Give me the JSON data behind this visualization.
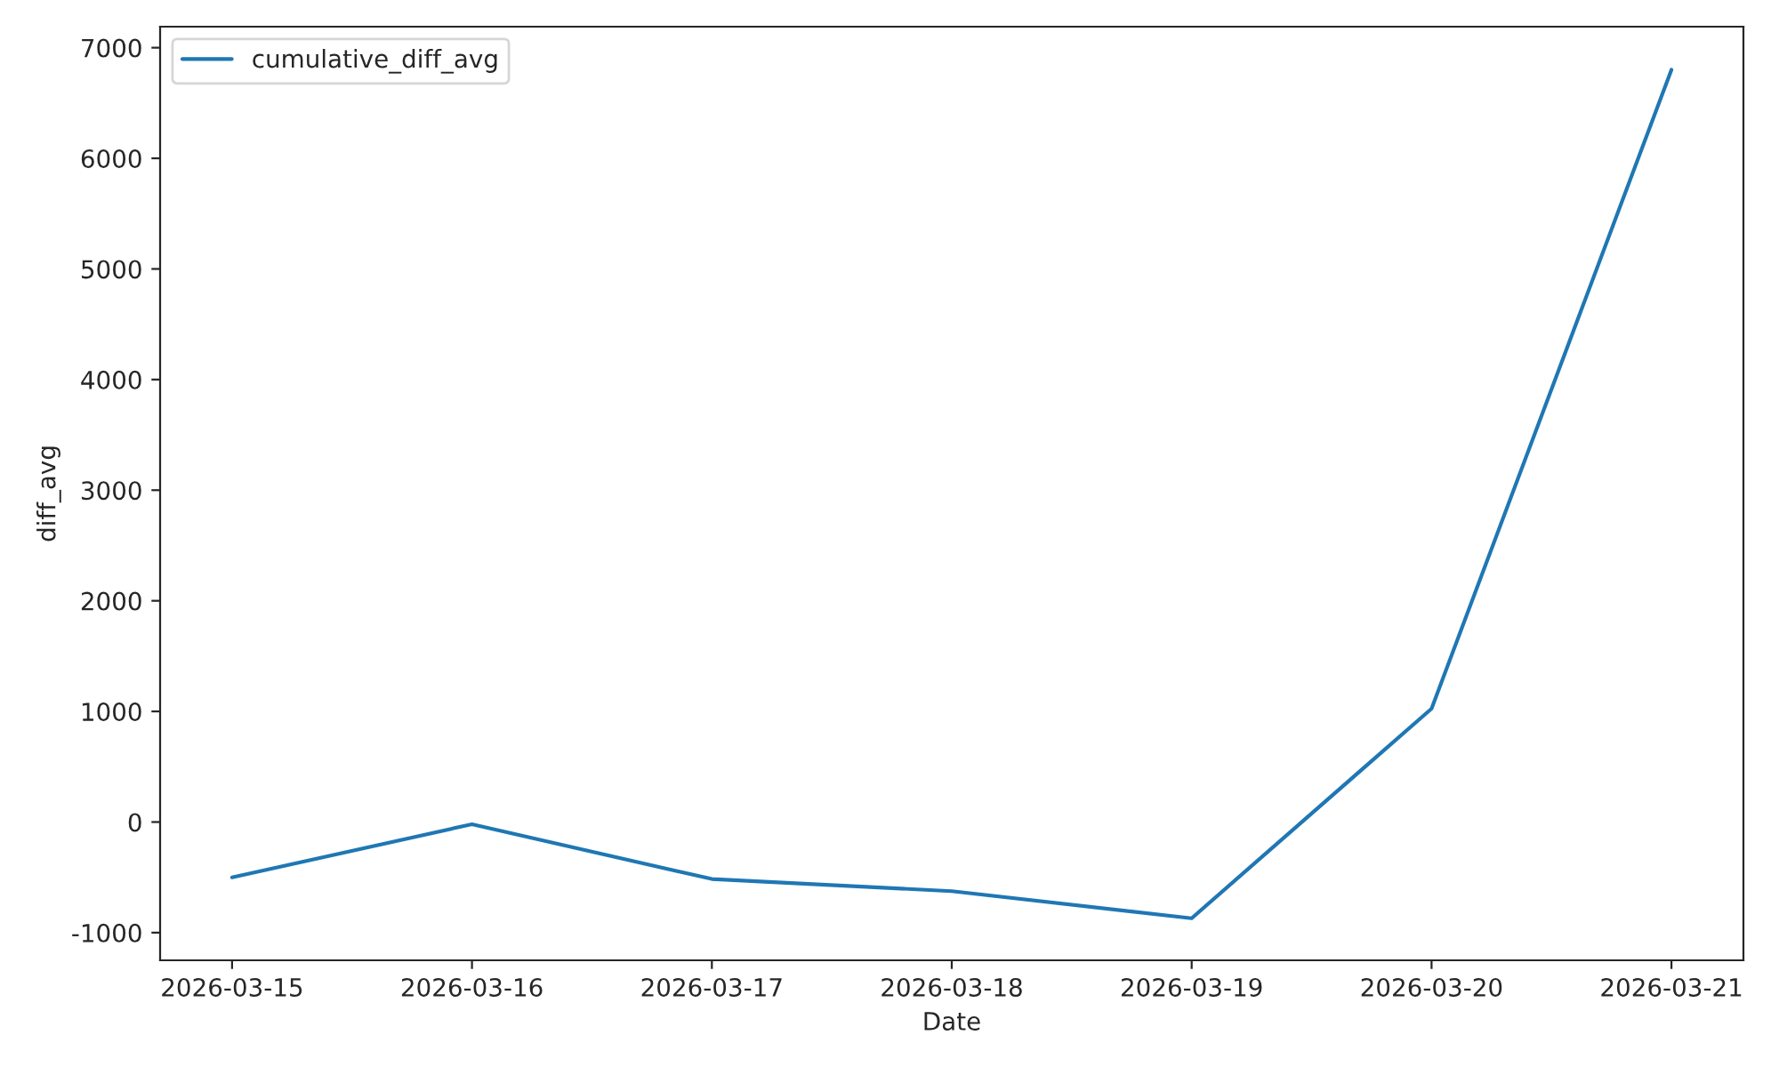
{
  "chart_data": {
    "type": "line",
    "xlabel": "Date",
    "ylabel": "diff_avg",
    "x": [
      "2026-03-15",
      "2026-03-16",
      "2026-03-17",
      "2026-03-18",
      "2026-03-19",
      "2026-03-20",
      "2026-03-21"
    ],
    "series": [
      {
        "name": "cumulative_diff_avg",
        "color": "#1f77b4",
        "values": [
          -500,
          -20,
          -515,
          -625,
          -870,
          1025,
          6800
        ]
      }
    ],
    "xlim": [
      "2026-03-14T16:48",
      "2026-03-21T07:12"
    ],
    "xticks": [
      "2026-03-15",
      "2026-03-16",
      "2026-03-17",
      "2026-03-18",
      "2026-03-19",
      "2026-03-20",
      "2026-03-21"
    ],
    "ylim": [
      -1250,
      7190
    ],
    "yticks": [
      -1000,
      0,
      1000,
      2000,
      3000,
      4000,
      5000,
      6000,
      7000
    ],
    "legend": "top left",
    "grid": false,
    "marker": "none",
    "line_style": "solid"
  }
}
